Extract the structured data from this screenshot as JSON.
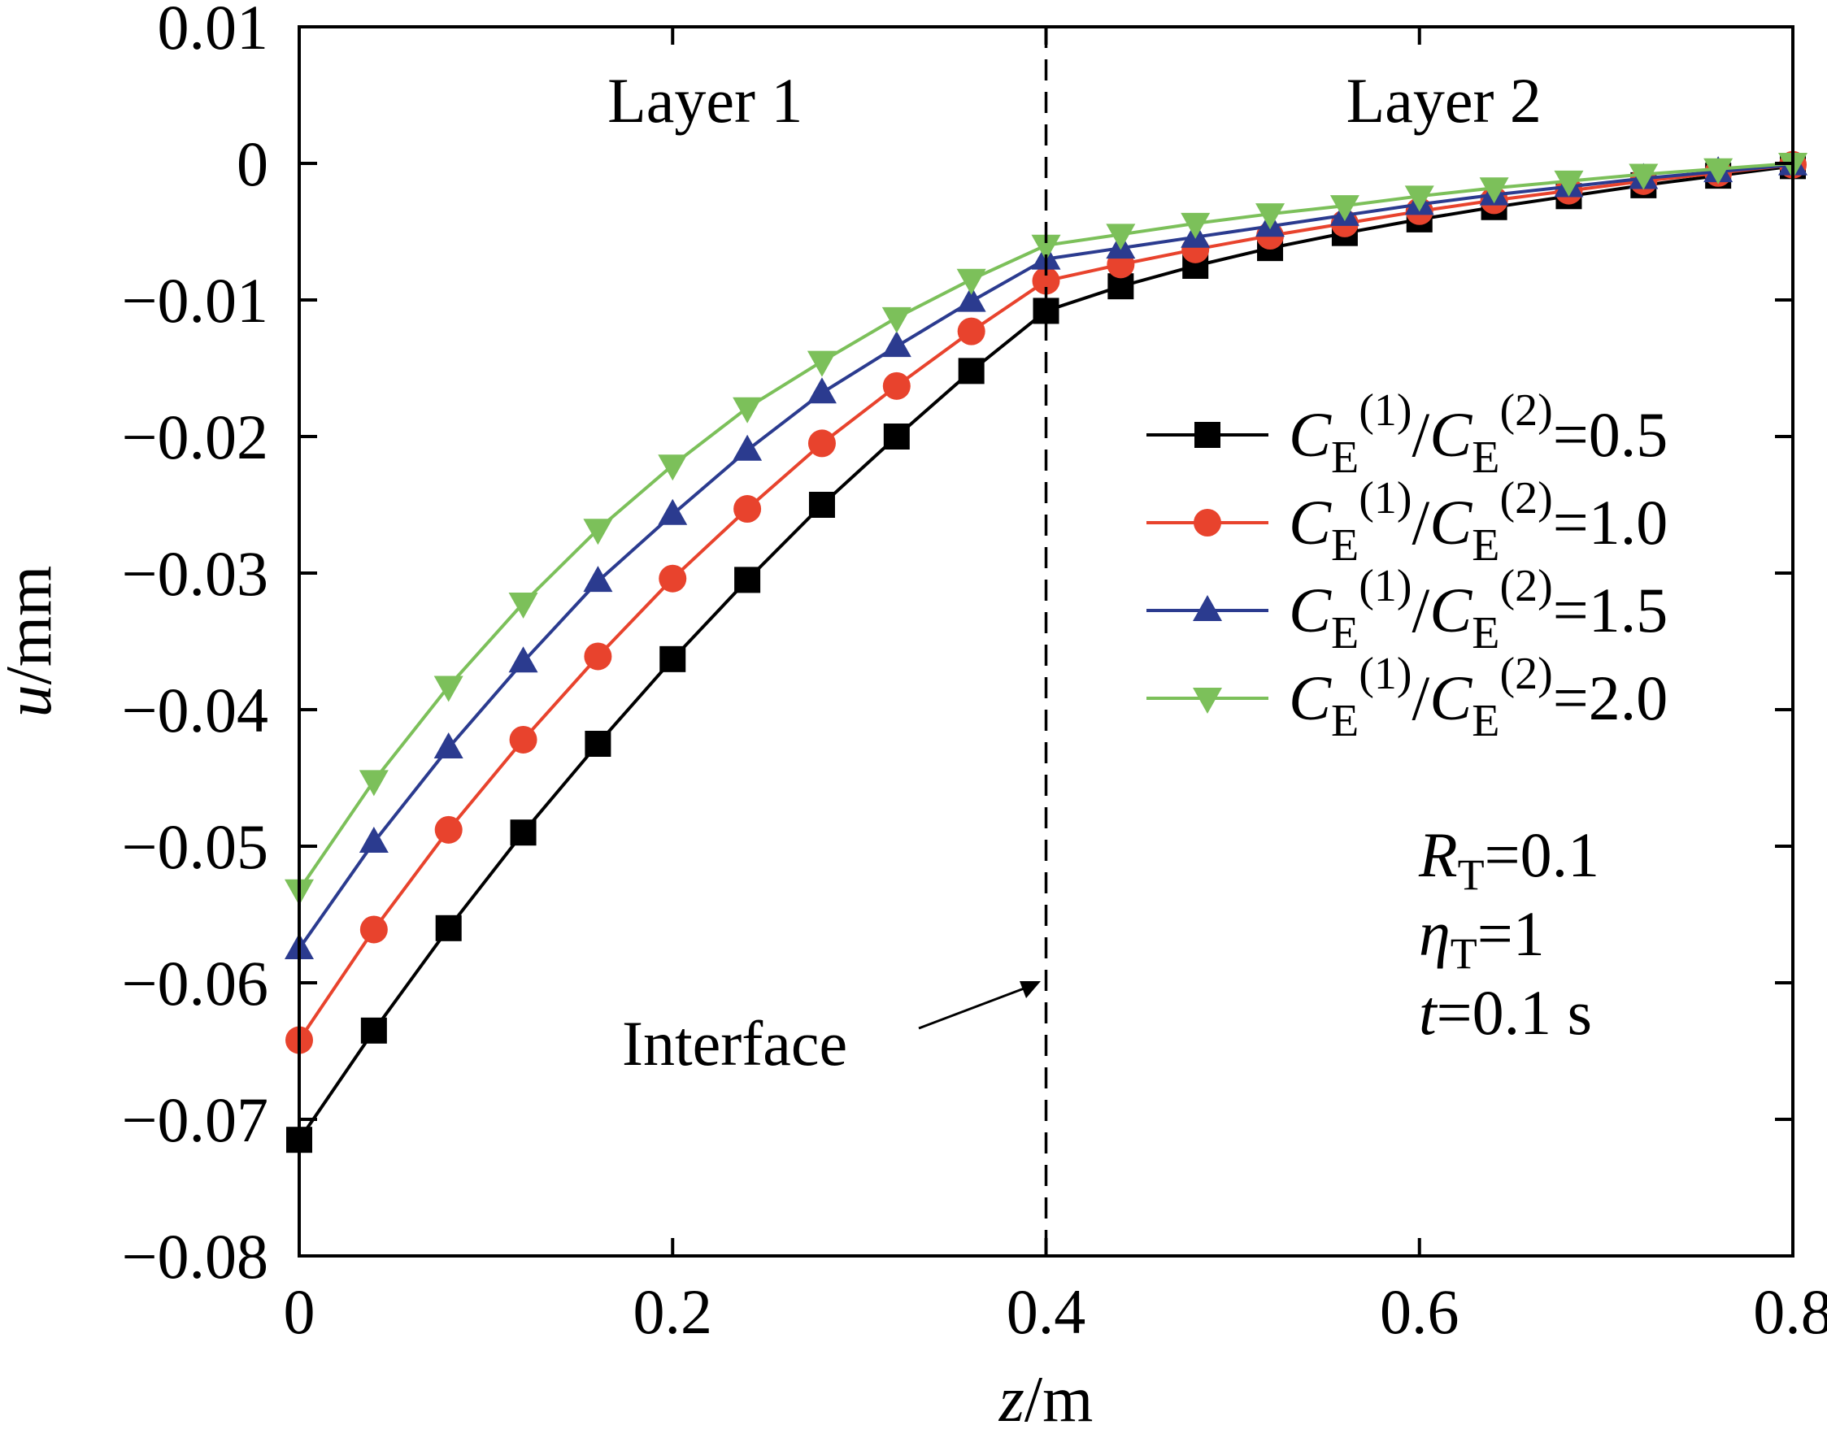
{
  "chart_data": {
    "type": "line",
    "xlabel": {
      "italic": "z",
      "unit": "/m"
    },
    "ylabel": {
      "italic": "u",
      "unit": "/mm"
    },
    "xlim": [
      0,
      0.8
    ],
    "ylim": [
      -0.08,
      0.01
    ],
    "xticks": [
      0,
      0.2,
      0.4,
      0.6,
      0.8
    ],
    "xtick_labels": [
      "0",
      "0.2",
      "0.4",
      "0.6",
      "0.8"
    ],
    "yticks": [
      0.01,
      0,
      -0.01,
      -0.02,
      -0.03,
      -0.04,
      -0.05,
      -0.06,
      -0.07,
      -0.08
    ],
    "ytick_labels": [
      "0.01",
      "0",
      "−0.01",
      "−0.02",
      "−0.03",
      "−0.04",
      "−0.05",
      "−0.06",
      "−0.07",
      "−0.08"
    ],
    "grid": false,
    "legend_position": "right",
    "x": [
      0,
      0.04,
      0.08,
      0.12,
      0.16,
      0.2,
      0.24,
      0.28,
      0.32,
      0.36,
      0.4,
      0.44,
      0.48,
      0.52,
      0.56,
      0.6,
      0.64,
      0.68,
      0.72,
      0.76,
      0.8
    ],
    "series": [
      {
        "label": {
          "sym": "C",
          "sub": "E",
          "sup1": "(1)",
          "sup2": "(2)",
          "value": "=0.5"
        },
        "color": "#000000",
        "marker": "square",
        "values": [
          -0.0715,
          -0.0635,
          -0.056,
          -0.049,
          -0.0425,
          -0.0363,
          -0.0305,
          -0.025,
          -0.02,
          -0.0152,
          -0.0108,
          -0.009,
          -0.0075,
          -0.0062,
          -0.0051,
          -0.0041,
          -0.0032,
          -0.0024,
          -0.0016,
          -0.0009,
          -0.0002
        ]
      },
      {
        "label": {
          "sym": "C",
          "sub": "E",
          "sup1": "(1)",
          "sup2": "(2)",
          "value": "=1.0"
        },
        "color": "#e8432d",
        "marker": "circle",
        "values": [
          -0.0642,
          -0.0561,
          -0.0488,
          -0.0422,
          -0.0361,
          -0.0304,
          -0.0253,
          -0.0205,
          -0.0163,
          -0.0123,
          -0.0086,
          -0.0074,
          -0.0063,
          -0.0053,
          -0.0044,
          -0.0035,
          -0.0027,
          -0.002,
          -0.0013,
          -0.0007,
          -0.0001
        ]
      },
      {
        "label": {
          "sym": "C",
          "sub": "E",
          "sup1": "(1)",
          "sup2": "(2)",
          "value": "=1.5"
        },
        "color": "#2b3b8f",
        "marker": "triangle-up",
        "values": [
          -0.0575,
          -0.0497,
          -0.0428,
          -0.0365,
          -0.0306,
          -0.0257,
          -0.021,
          -0.0168,
          -0.0134,
          -0.0101,
          -0.007,
          -0.0062,
          -0.0054,
          -0.0046,
          -0.0038,
          -0.003,
          -0.0023,
          -0.0017,
          -0.0011,
          -0.0006,
          -0.0001
        ]
      },
      {
        "label": {
          "sym": "C",
          "sub": "E",
          "sup1": "(1)",
          "sup2": "(2)",
          "value": "=2.0"
        },
        "color": "#7cc05a",
        "marker": "triangle-down",
        "values": [
          -0.0532,
          -0.0452,
          -0.0383,
          -0.0322,
          -0.0268,
          -0.0221,
          -0.0179,
          -0.0145,
          -0.0113,
          -0.0085,
          -0.006,
          -0.0052,
          -0.0044,
          -0.0037,
          -0.0031,
          -0.0024,
          -0.0018,
          -0.0013,
          -0.0008,
          -0.0004,
          0
        ]
      }
    ],
    "annotations": {
      "layer1": "Layer 1",
      "layer2": "Layer 2",
      "interface": "Interface",
      "interface_x": 0.4,
      "params": [
        {
          "sym": "R",
          "sub": "T",
          "rest": "=0.1"
        },
        {
          "sym": "η",
          "sub": "T",
          "rest": "=1"
        },
        {
          "sym": "t",
          "sub": "",
          "rest": "=0.1 s"
        }
      ]
    }
  }
}
